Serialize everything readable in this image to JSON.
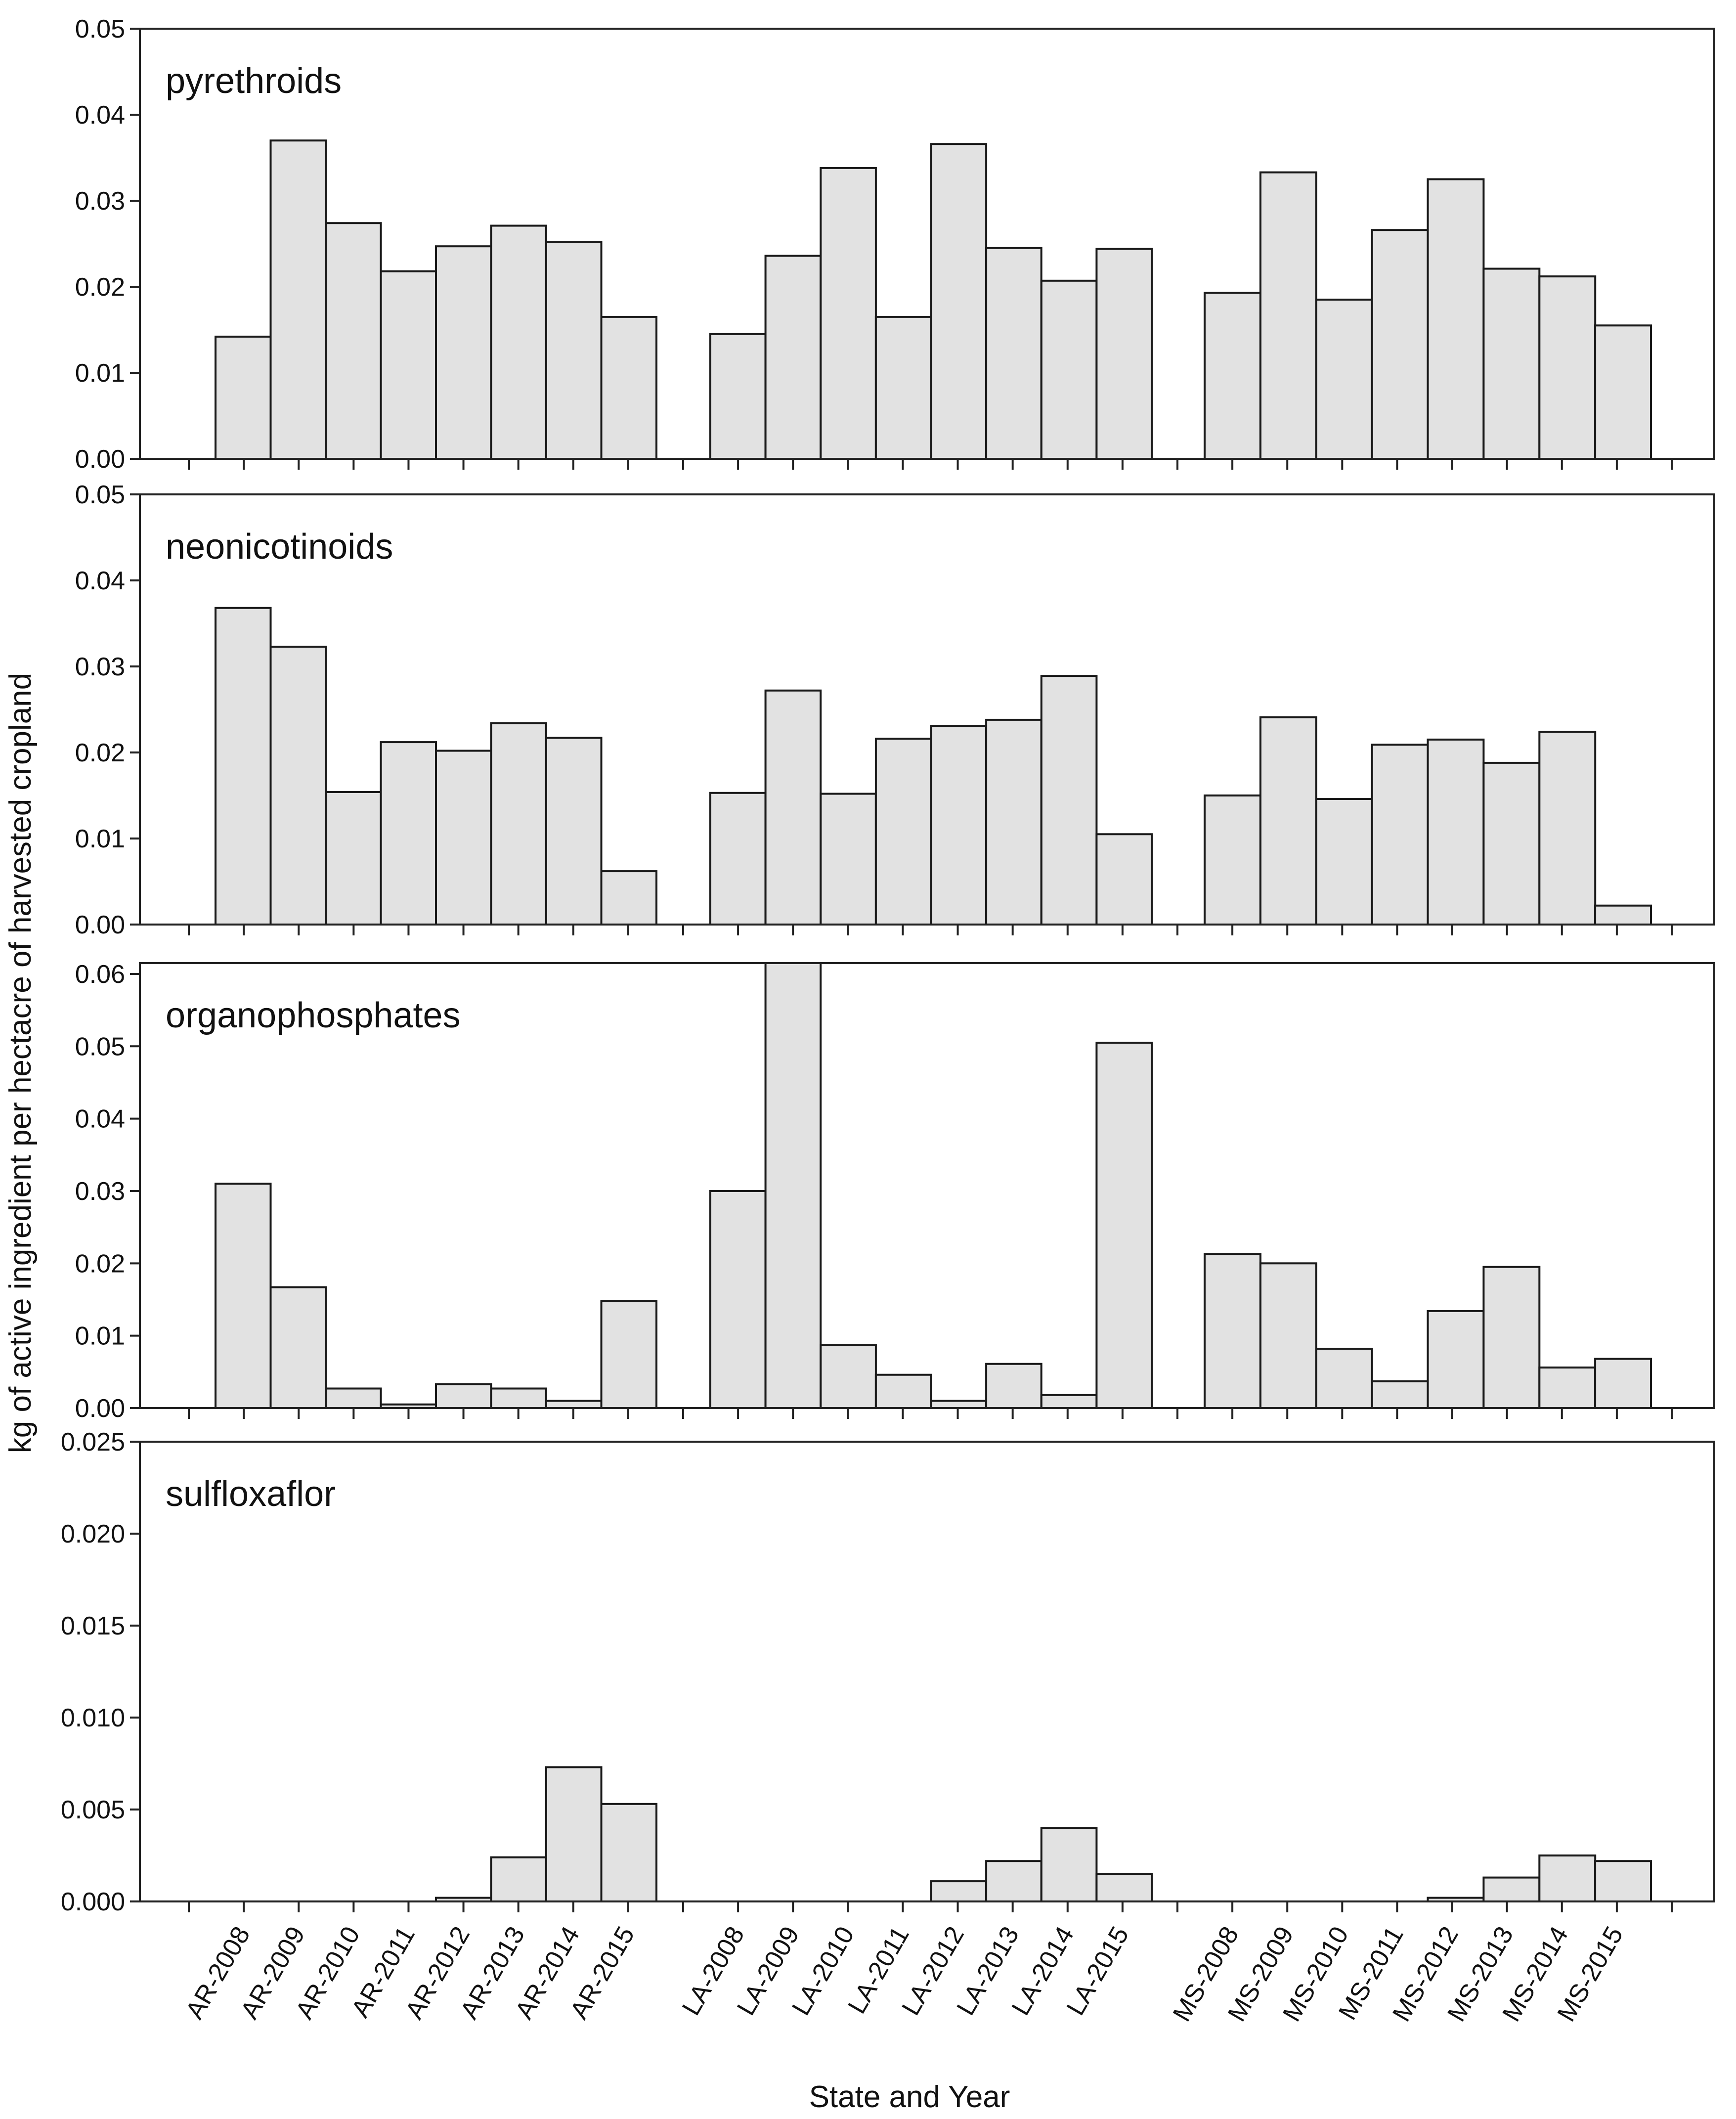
{
  "chart_data": {
    "type": "bar",
    "xlabel": "State and Year",
    "ylabel": "kg of active ingredient per hectacre of harvested cropland",
    "categories": [
      "AR-2008",
      "AR-2009",
      "AR-2010",
      "AR-2011",
      "AR-2012",
      "AR-2013",
      "AR-2014",
      "AR-2015",
      "LA-2008",
      "LA-2009",
      "LA-2010",
      "LA-2011",
      "LA-2012",
      "LA-2013",
      "LA-2014",
      "LA-2015",
      "MS-2008",
      "MS-2009",
      "MS-2010",
      "MS-2011",
      "MS-2012",
      "MS-2013",
      "MS-2014",
      "MS-2015"
    ],
    "groups": [
      "AR",
      "LA",
      "MS"
    ],
    "panels": [
      {
        "title": "pyrethroids",
        "ylim": [
          0,
          0.05
        ],
        "yticks": [
          "0.00",
          "0.01",
          "0.02",
          "0.03",
          "0.04",
          "0.05"
        ],
        "values": [
          0.0142,
          0.037,
          0.0274,
          0.0218,
          0.0247,
          0.0271,
          0.0252,
          0.0165,
          0.0145,
          0.0236,
          0.0338,
          0.0165,
          0.0366,
          0.0245,
          0.0207,
          0.0244,
          0.0193,
          0.0333,
          0.0185,
          0.0266,
          0.0325,
          0.0221,
          0.0212,
          0.0155
        ]
      },
      {
        "title": "neonicotinoids",
        "ylim": [
          0,
          0.05
        ],
        "yticks": [
          "0.00",
          "0.01",
          "0.02",
          "0.03",
          "0.04",
          "0.05"
        ],
        "values": [
          0.0368,
          0.0323,
          0.0154,
          0.0212,
          0.0202,
          0.0234,
          0.0217,
          0.0062,
          0.0153,
          0.0272,
          0.0152,
          0.0216,
          0.0231,
          0.0238,
          0.0289,
          0.0105,
          0.015,
          0.0241,
          0.0146,
          0.0209,
          0.0215,
          0.0188,
          0.0224,
          0.0022
        ]
      },
      {
        "title": "organophosphates",
        "ylim": [
          0,
          0.0615
        ],
        "yticks": [
          "0.00",
          "0.01",
          "0.02",
          "0.03",
          "0.04",
          "0.05",
          "0.06"
        ],
        "values": [
          0.031,
          0.0167,
          0.0027,
          0.0005,
          0.0033,
          0.0027,
          0.001,
          0.0148,
          0.03,
          0.0615,
          0.0087,
          0.0046,
          0.001,
          0.0061,
          0.0018,
          0.0505,
          0.0213,
          0.02,
          0.0082,
          0.0037,
          0.0134,
          0.0195,
          0.0056,
          0.0068
        ]
      },
      {
        "title": "sulfloxaflor",
        "ylim": [
          0,
          0.025
        ],
        "yticks": [
          "0.000",
          "0.005",
          "0.010",
          "0.015",
          "0.020",
          "0.025"
        ],
        "values": [
          0,
          0,
          0,
          0,
          0.0002,
          0.0024,
          0.0073,
          0.0053,
          0,
          0,
          0,
          0,
          0.0011,
          0.0022,
          0.004,
          0.0015,
          0,
          0,
          0,
          0,
          0.0002,
          0.0013,
          0.0025,
          0.0022
        ]
      }
    ]
  }
}
